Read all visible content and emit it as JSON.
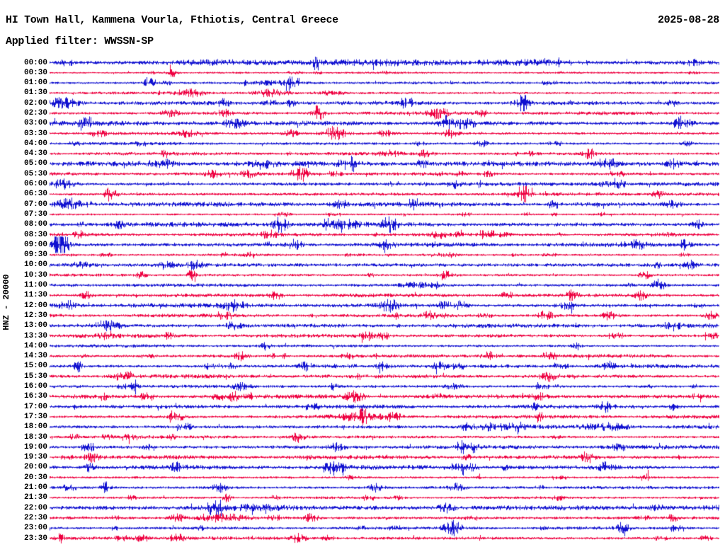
{
  "header": {
    "title": "HI Town Hall, Kammena Vourla, Fthiotis, Central Greece",
    "date": "2025-08-28",
    "filter_label": "Applied filter: WWSSN-SP"
  },
  "axis": {
    "channel_label": "HNZ - 20000"
  },
  "colors": {
    "blue": "#1010d0",
    "red": "#ee0040",
    "text": "#000000",
    "background": "#ffffff"
  },
  "chart_data": {
    "type": "line",
    "subtype": "helicorder-seismogram",
    "station": "HI Town Hall, Kammena Vourla, Fthiotis, Central Greece",
    "channel": "HNZ",
    "gain": "20000",
    "date": "2025-08-28",
    "filter": "WWSSN-SP",
    "minutes_per_row": 30,
    "row_count": 48,
    "legend": "blue/red alternating half-hour traces, time of day on left axis",
    "rows": [
      {
        "t": "00:00",
        "c": "blue",
        "b": 1.55,
        "e": [
          [
            0.25,
            1.2,
            80
          ],
          [
            0.5,
            1.4,
            120
          ],
          [
            0.72,
            1.0,
            60
          ]
        ]
      },
      {
        "t": "00:30",
        "c": "red",
        "b": 0.55,
        "e": [
          [
            0.18,
            1.5,
            6
          ],
          [
            0.37,
            1.2,
            5
          ],
          [
            0.5,
            0.8,
            6
          ]
        ]
      },
      {
        "t": "01:00",
        "c": "blue",
        "b": 1.0,
        "e": [
          [
            0.148,
            4.5,
            6
          ],
          [
            0.34,
            1.5,
            30
          ]
        ]
      },
      {
        "t": "01:30",
        "c": "red",
        "b": 0.9,
        "e": [
          [
            0.21,
            2.2,
            18
          ],
          [
            0.33,
            2.5,
            22
          ],
          [
            0.42,
            1.5,
            15
          ]
        ]
      },
      {
        "t": "02:00",
        "c": "blue",
        "b": 1.2,
        "e": [
          [
            0.02,
            3.5,
            20
          ],
          [
            0.26,
            2.5,
            8
          ],
          [
            0.33,
            2.0,
            10
          ],
          [
            0.36,
            2.5,
            6
          ],
          [
            0.705,
            2.0,
            12
          ],
          [
            0.93,
            2.0,
            8
          ]
        ]
      },
      {
        "t": "02:30",
        "c": "red",
        "b": 1.0,
        "e": [
          [
            0.18,
            2.0,
            12
          ],
          [
            0.26,
            2.0,
            10
          ],
          [
            0.4,
            2.0,
            10
          ],
          [
            0.58,
            3.5,
            14
          ],
          [
            0.645,
            2.0,
            10
          ]
        ]
      },
      {
        "t": "03:00",
        "c": "blue",
        "b": 1.5,
        "e": [
          [
            0.275,
            2.5,
            15
          ],
          [
            0.6,
            3.0,
            18
          ],
          [
            0.624,
            2.5,
            10
          ],
          [
            0.95,
            2.0,
            10
          ]
        ]
      },
      {
        "t": "03:30",
        "c": "red",
        "b": 1.1,
        "e": [
          [
            0.074,
            2.0,
            10
          ],
          [
            0.206,
            2.5,
            12
          ],
          [
            0.36,
            2.0,
            10
          ],
          [
            0.423,
            4.5,
            16
          ],
          [
            0.5,
            2.0,
            10
          ],
          [
            0.6,
            2.5,
            12
          ]
        ]
      },
      {
        "t": "04:00",
        "c": "blue",
        "b": 0.95,
        "e": [
          [
            0.645,
            2.0,
            8
          ],
          [
            0.951,
            2.5,
            6
          ]
        ]
      },
      {
        "t": "04:30",
        "c": "red",
        "b": 1.0,
        "e": [
          [
            0.507,
            2.5,
            12
          ],
          [
            0.56,
            2.0,
            10
          ],
          [
            0.803,
            3.2,
            6
          ]
        ]
      },
      {
        "t": "05:00",
        "c": "blue",
        "b": 1.6,
        "e": [
          [
            0.169,
            2.5,
            12
          ],
          [
            0.317,
            2.5,
            14
          ],
          [
            0.444,
            2.5,
            12
          ],
          [
            0.835,
            3.0,
            14
          ],
          [
            0.93,
            2.5,
            10
          ]
        ]
      },
      {
        "t": "05:30",
        "c": "red",
        "b": 1.0,
        "e": [
          [
            0.243,
            2.0,
            10
          ],
          [
            0.296,
            2.0,
            10
          ],
          [
            0.375,
            5.0,
            10
          ]
        ]
      },
      {
        "t": "06:00",
        "c": "blue",
        "b": 1.3,
        "e": [
          [
            0.02,
            3.0,
            15
          ],
          [
            0.603,
            2.5,
            8
          ],
          [
            0.83,
            1.5,
            20
          ]
        ]
      },
      {
        "t": "06:30",
        "c": "red",
        "b": 1.1,
        "e": [
          [
            0.095,
            2.0,
            8
          ],
          [
            0.708,
            2.5,
            10
          ],
          [
            0.909,
            2.5,
            8
          ]
        ]
      },
      {
        "t": "07:00",
        "c": "blue",
        "b": 1.5,
        "e": [
          [
            0.03,
            3.0,
            18
          ],
          [
            0.433,
            2.5,
            12
          ],
          [
            0.93,
            2.0,
            10
          ]
        ]
      },
      {
        "t": "07:30",
        "c": "red",
        "b": 0.75,
        "e": [
          [
            0.35,
            1.5,
            8
          ],
          [
            0.62,
            1.5,
            8
          ]
        ]
      },
      {
        "t": "08:00",
        "c": "blue",
        "b": 1.5,
        "e": [
          [
            0.344,
            5.5,
            10
          ],
          [
            0.44,
            2.5,
            20
          ],
          [
            0.507,
            6.0,
            9
          ],
          [
            0.967,
            2.5,
            8
          ]
        ]
      },
      {
        "t": "08:30",
        "c": "red",
        "b": 1.0,
        "e": [
          [
            0.042,
            2.5,
            8
          ],
          [
            0.328,
            2.5,
            10
          ],
          [
            0.581,
            2.5,
            10
          ],
          [
            0.613,
            2.5,
            8
          ]
        ]
      },
      {
        "t": "09:00",
        "c": "blue",
        "b": 1.4,
        "e": [
          [
            0.015,
            5.0,
            12
          ],
          [
            0.365,
            3.5,
            10
          ],
          [
            0.502,
            2.5,
            10
          ],
          [
            0.877,
            2.5,
            10
          ],
          [
            0.946,
            2.5,
            8
          ]
        ]
      },
      {
        "t": "09:30",
        "c": "red",
        "b": 0.7,
        "e": [
          [
            0.296,
            1.5,
            8
          ],
          [
            0.6,
            1.5,
            6
          ]
        ]
      },
      {
        "t": "10:00",
        "c": "blue",
        "b": 1.65,
        "e": [
          [
            0.048,
            2.5,
            10
          ],
          [
            0.174,
            2.5,
            10
          ],
          [
            0.217,
            2.5,
            10
          ],
          [
            0.957,
            2.5,
            8
          ]
        ]
      },
      {
        "t": "10:30",
        "c": "red",
        "b": 1.0,
        "e": [
          [
            0.137,
            2.0,
            8
          ],
          [
            0.211,
            3.5,
            6
          ],
          [
            0.592,
            2.5,
            10
          ],
          [
            0.888,
            2.5,
            8
          ]
        ]
      },
      {
        "t": "11:00",
        "c": "blue",
        "b": 1.2,
        "e": [
          [
            0.55,
            1.5,
            25
          ],
          [
            0.909,
            4.0,
            8
          ]
        ]
      },
      {
        "t": "11:30",
        "c": "red",
        "b": 1.1,
        "e": [
          [
            0.053,
            2.5,
            8
          ],
          [
            0.338,
            2.5,
            10
          ],
          [
            0.78,
            3.5,
            7
          ],
          [
            0.883,
            2.5,
            8
          ]
        ]
      },
      {
        "t": "12:00",
        "c": "blue",
        "b": 1.5,
        "e": [
          [
            0.026,
            3.0,
            12
          ],
          [
            0.275,
            3.0,
            14
          ],
          [
            0.507,
            3.5,
            14
          ],
          [
            0.613,
            2.5,
            8
          ],
          [
            0.772,
            2.5,
            8
          ]
        ]
      },
      {
        "t": "12:30",
        "c": "red",
        "b": 1.1,
        "e": [
          [
            0.566,
            2.5,
            10
          ],
          [
            0.74,
            3.0,
            10
          ],
          [
            0.835,
            2.5,
            10
          ],
          [
            0.988,
            3.0,
            8
          ]
        ]
      },
      {
        "t": "13:00",
        "c": "blue",
        "b": 1.3,
        "e": [
          [
            0.085,
            3.0,
            18
          ],
          [
            0.275,
            2.5,
            10
          ]
        ]
      },
      {
        "t": "13:30",
        "c": "red",
        "b": 1.2,
        "e": [
          [
            0.085,
            2.5,
            10
          ],
          [
            0.476,
            2.5,
            10
          ]
        ]
      },
      {
        "t": "14:00",
        "c": "blue",
        "b": 0.95,
        "e": [
          [
            0.322,
            2.5,
            6
          ],
          [
            0.787,
            2.5,
            6
          ]
        ]
      },
      {
        "t": "14:30",
        "c": "red",
        "b": 1.1,
        "e": [
          [
            0.285,
            2.5,
            10
          ],
          [
            0.655,
            2.5,
            10
          ]
        ]
      },
      {
        "t": "15:00",
        "c": "blue",
        "b": 1.2,
        "e": [
          [
            0.042,
            3.5,
            6
          ],
          [
            0.381,
            2.5,
            10
          ],
          [
            0.497,
            2.5,
            10
          ],
          [
            0.581,
            2.5,
            10
          ],
          [
            0.835,
            2.5,
            10
          ]
        ]
      },
      {
        "t": "15:30",
        "c": "red",
        "b": 1.2,
        "e": [
          [
            0.745,
            3.0,
            12
          ]
        ]
      },
      {
        "t": "16:00",
        "c": "blue",
        "b": 1.1,
        "e": [
          [
            0.127,
            4.5,
            6
          ],
          [
            0.285,
            2.5,
            10
          ],
          [
            0.423,
            2.5,
            6
          ],
          [
            0.603,
            2.5,
            10
          ]
        ]
      },
      {
        "t": "16:30",
        "c": "red",
        "b": 1.3,
        "e": [
          [
            0.275,
            2.5,
            12
          ],
          [
            0.455,
            3.0,
            14
          ],
          [
            0.73,
            2.0,
            10
          ]
        ]
      },
      {
        "t": "17:00",
        "c": "blue",
        "b": 1.2,
        "e": [
          [
            0.83,
            3.0,
            10
          ],
          [
            0.93,
            2.0,
            8
          ]
        ]
      },
      {
        "t": "17:30",
        "c": "red",
        "b": 1.2,
        "e": [
          [
            0.19,
            2.5,
            10
          ],
          [
            0.46,
            2.0,
            40
          ],
          [
            0.513,
            2.5,
            10
          ]
        ]
      },
      {
        "t": "18:00",
        "c": "blue",
        "b": 1.4,
        "e": [
          [
            0.666,
            2.0,
            40
          ],
          [
            0.83,
            2.0,
            30
          ]
        ]
      },
      {
        "t": "18:30",
        "c": "red",
        "b": 1.1,
        "e": [
          [
            0.37,
            4.5,
            8
          ]
        ]
      },
      {
        "t": "19:00",
        "c": "blue",
        "b": 1.4,
        "e": [
          [
            0.428,
            2.5,
            10
          ],
          [
            0.629,
            3.0,
            10
          ]
        ]
      },
      {
        "t": "19:30",
        "c": "red",
        "b": 1.2,
        "e": [
          [
            0.063,
            2.5,
            10
          ],
          [
            0.803,
            4.0,
            8
          ]
        ]
      },
      {
        "t": "20:00",
        "c": "blue",
        "b": 1.4,
        "e": [
          [
            0.06,
            3.5,
            8
          ],
          [
            0.19,
            2.5,
            10
          ],
          [
            0.433,
            2.5,
            10
          ],
          [
            0.629,
            2.5,
            10
          ],
          [
            0.83,
            2.5,
            10
          ]
        ]
      },
      {
        "t": "20:30",
        "c": "red",
        "b": 0.9,
        "e": [
          [
            0.45,
            1.5,
            8
          ],
          [
            0.89,
            2.0,
            6
          ]
        ]
      },
      {
        "t": "21:00",
        "c": "blue",
        "b": 1.2,
        "e": [
          [
            0.085,
            4.0,
            7
          ],
          [
            0.254,
            2.5,
            10
          ],
          [
            0.486,
            2.5,
            10
          ],
          [
            0.608,
            2.5,
            10
          ]
        ]
      },
      {
        "t": "21:30",
        "c": "red",
        "b": 0.75,
        "e": [
          [
            0.264,
            2.5,
            6
          ],
          [
            0.52,
            1.5,
            6
          ]
        ]
      },
      {
        "t": "22:00",
        "c": "blue",
        "b": 2.0,
        "e": [
          [
            0.3,
            1.5,
            60
          ],
          [
            0.592,
            2.5,
            10
          ]
        ]
      },
      {
        "t": "22:30",
        "c": "red",
        "b": 1.2,
        "e": [
          [
            0.19,
            2.5,
            10
          ],
          [
            0.26,
            2.5,
            30
          ],
          [
            0.391,
            2.5,
            10
          ]
        ]
      },
      {
        "t": "23:00",
        "c": "blue",
        "b": 0.9,
        "e": [
          [
            0.597,
            3.0,
            10
          ],
          [
            0.856,
            3.5,
            8
          ]
        ]
      },
      {
        "t": "23:30",
        "c": "red",
        "b": 1.1,
        "e": [
          [
            0.137,
            2.5,
            10
          ],
          [
            0.19,
            2.5,
            10
          ],
          [
            0.37,
            2.5,
            10
          ]
        ]
      }
    ]
  }
}
